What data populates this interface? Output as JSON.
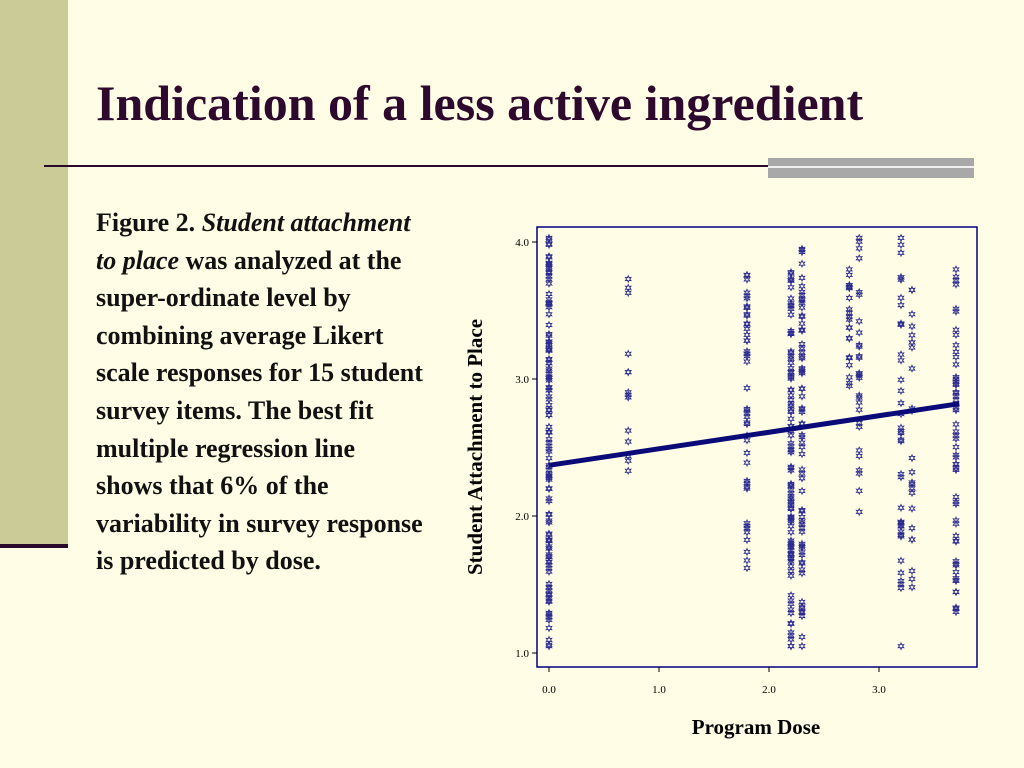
{
  "slide": {
    "title": "Indication of a less active ingredient",
    "caption_figure": "Figure 2. ",
    "caption_italic": "Student attachment to place",
    "caption_rest": " was analyzed at the super-ordinate level by combining average Likert scale responses for 15 student survey items. The best fit multiple regression line shows that 6% of the variability in survey response is predicted by dose."
  },
  "colors": {
    "background": "#fffde6",
    "side_band": "#cbcb98",
    "title_text": "#2d0a2d",
    "points": "#2b2b90",
    "fit_line": "#0a0a78",
    "axes": "#000080"
  },
  "chart_data": {
    "type": "scatter",
    "title": "",
    "xlabel": "Program Dose",
    "ylabel": "Student Attachment to Place",
    "xlim": [
      0,
      3.8
    ],
    "ylim": [
      1.0,
      4.1
    ],
    "xticks": [
      "0.0",
      "1.0",
      "2.0",
      "3.0"
    ],
    "yticks": [
      "1.0",
      "2.0",
      "3.0",
      "4.0"
    ],
    "grid": false,
    "point_marker": "star",
    "fit_line": {
      "x": [
        0.0,
        3.73
      ],
      "y": [
        2.37,
        2.82
      ]
    },
    "point_columns": [
      {
        "x": 0.0,
        "y_min": 1.05,
        "y_max": 4.03,
        "n": 120
      },
      {
        "x": 0.72,
        "y_min": 2.33,
        "y_max": 3.73,
        "n": 14
      },
      {
        "x": 1.8,
        "y_min": 1.62,
        "y_max": 3.76,
        "n": 45
      },
      {
        "x": 2.2,
        "y_min": 1.05,
        "y_max": 3.78,
        "n": 95
      },
      {
        "x": 2.3,
        "y_min": 1.05,
        "y_max": 3.95,
        "n": 70
      },
      {
        "x": 2.73,
        "y_min": 2.95,
        "y_max": 3.8,
        "n": 22
      },
      {
        "x": 2.82,
        "y_min": 2.03,
        "y_max": 4.03,
        "n": 28
      },
      {
        "x": 3.2,
        "y_min": 1.05,
        "y_max": 4.03,
        "n": 40
      },
      {
        "x": 3.3,
        "y_min": 1.48,
        "y_max": 3.65,
        "n": 24
      },
      {
        "x": 3.7,
        "y_min": 1.3,
        "y_max": 3.8,
        "n": 55
      }
    ]
  }
}
